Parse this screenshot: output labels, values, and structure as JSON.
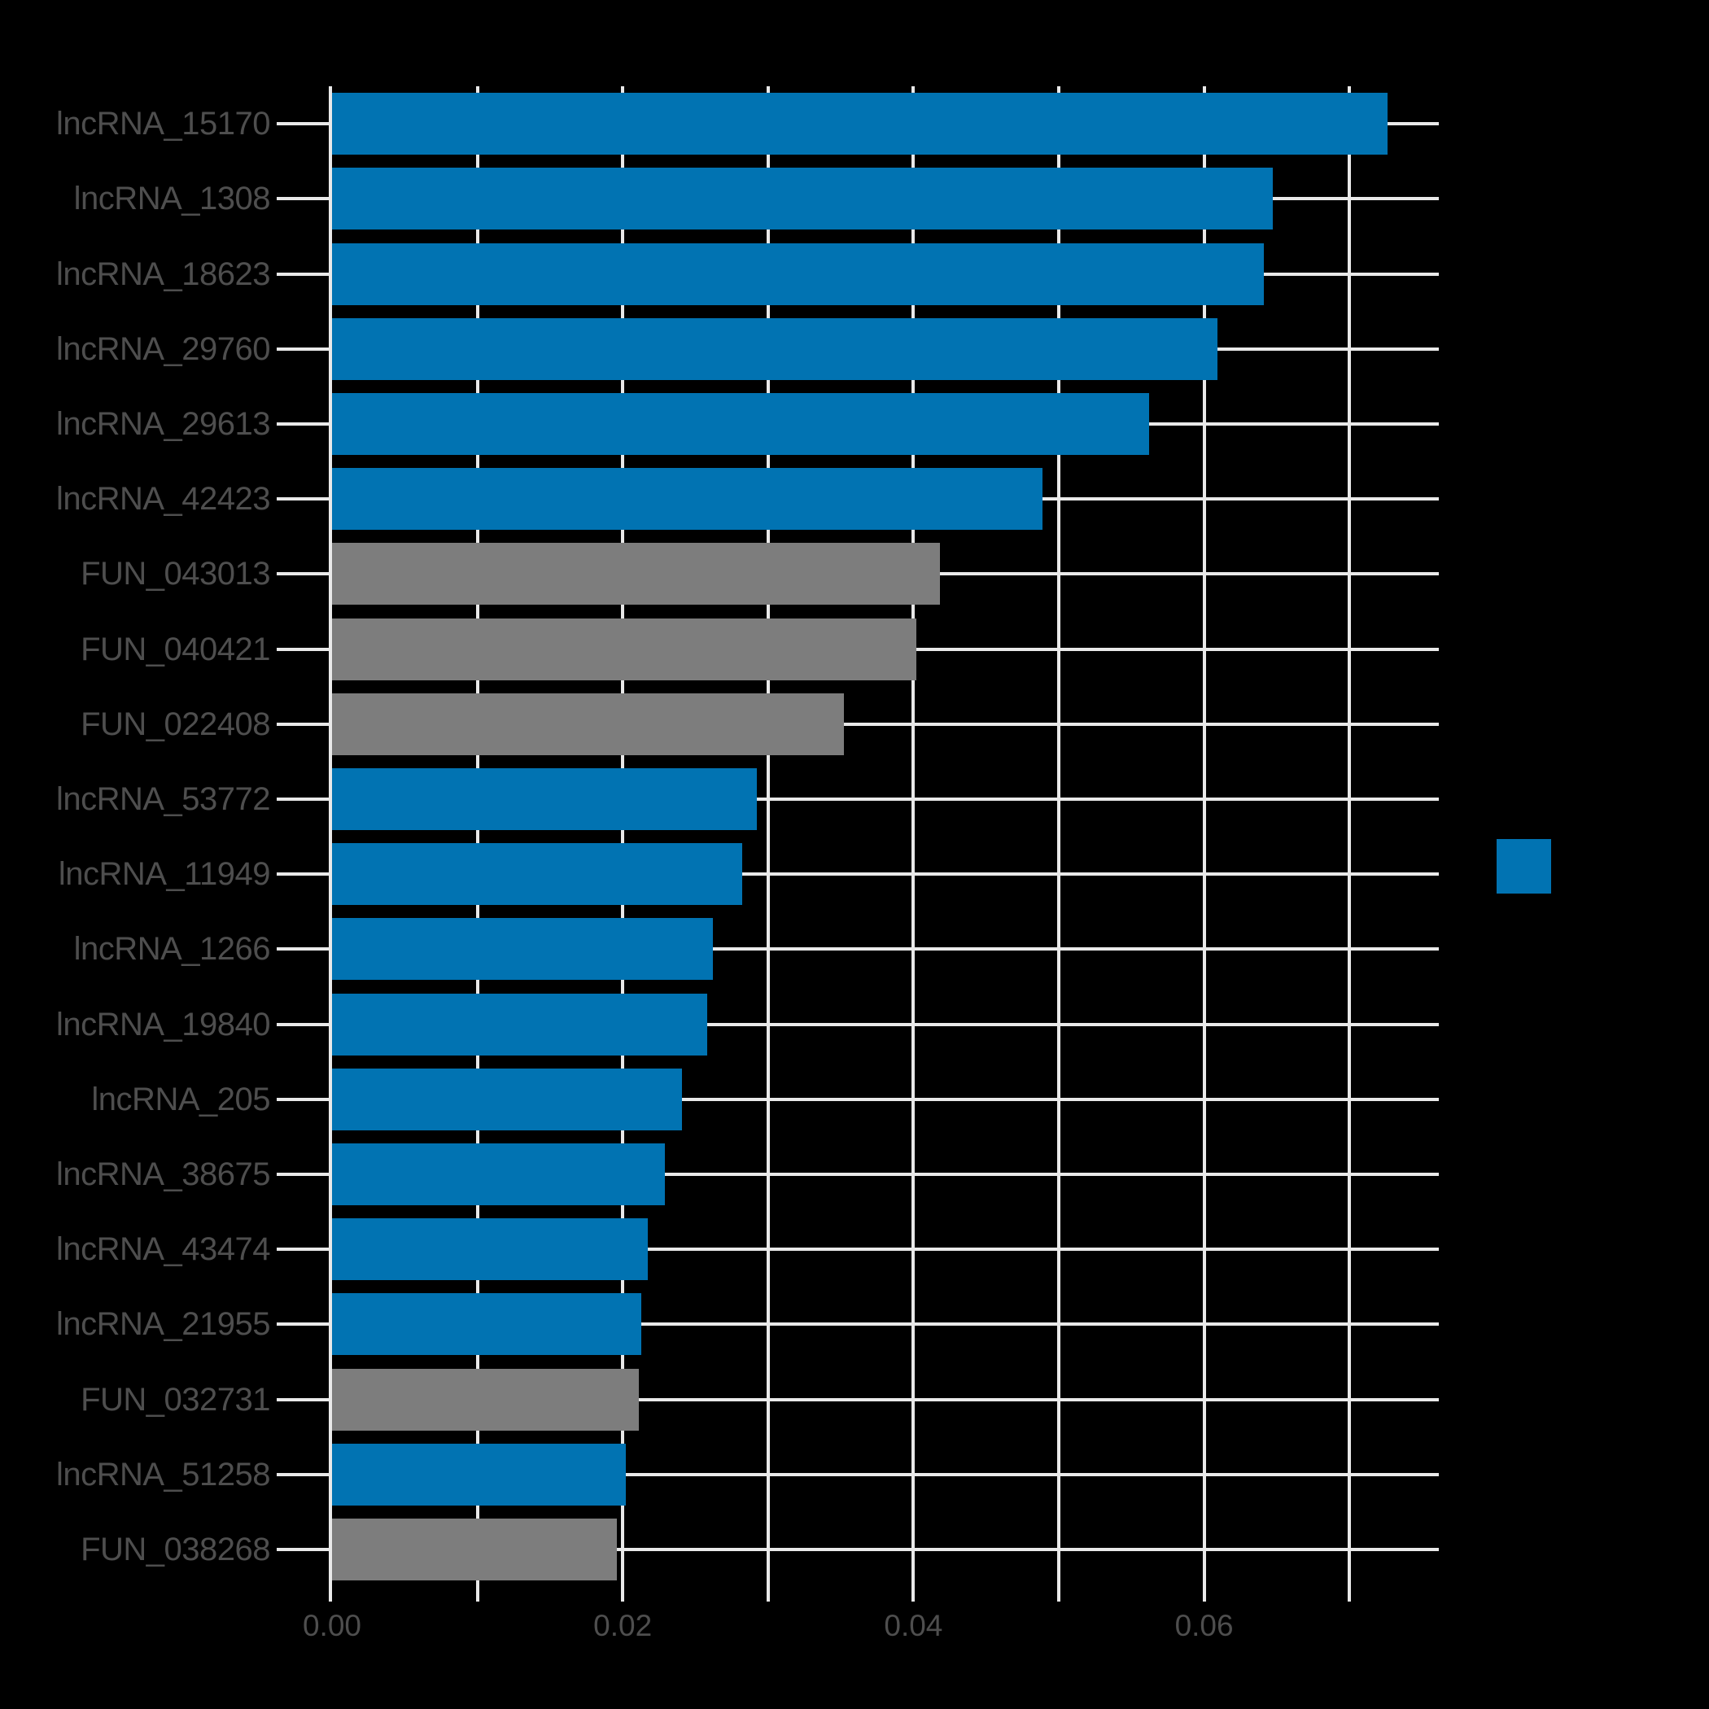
{
  "chart_data": {
    "type": "bar",
    "orientation": "horizontal",
    "title": "",
    "xlabel": "",
    "ylabel": "",
    "categories": [
      "lncRNA_15170",
      "lncRNA_1308",
      "lncRNA_18623",
      "lncRNA_29760",
      "lncRNA_29613",
      "lncRNA_42423",
      "FUN_043013",
      "FUN_040421",
      "FUN_022408",
      "lncRNA_53772",
      "lncRNA_11949",
      "lncRNA_1266",
      "lncRNA_19840",
      "lncRNA_205",
      "lncRNA_38675",
      "lncRNA_43474",
      "lncRNA_21955",
      "FUN_032731",
      "lncRNA_51258",
      "FUN_038268"
    ],
    "values": [
      0.0726,
      0.0647,
      0.0641,
      0.0609,
      0.0562,
      0.0489,
      0.0418,
      0.0402,
      0.0352,
      0.0292,
      0.0282,
      0.0262,
      0.0258,
      0.0241,
      0.0229,
      0.0217,
      0.0213,
      0.0211,
      0.0202,
      0.0196
    ],
    "groups": [
      "lncRNA",
      "lncRNA",
      "lncRNA",
      "lncRNA",
      "lncRNA",
      "lncRNA",
      "FUN",
      "FUN",
      "FUN",
      "lncRNA",
      "lncRNA",
      "lncRNA",
      "lncRNA",
      "lncRNA",
      "lncRNA",
      "lncRNA",
      "lncRNA",
      "FUN",
      "lncRNA",
      "FUN"
    ],
    "group_colors": {
      "lncRNA": "#0173b2",
      "FUN": "#7d7d7d"
    },
    "x_tick_values": [
      0,
      0.01,
      0.02,
      0.03,
      0.04,
      0.05,
      0.06,
      0.07
    ],
    "x_tick_labels": [
      "0.00",
      "",
      "0.02",
      "",
      "0.04",
      "",
      "0.06",
      ""
    ],
    "xlim": [
      0,
      0.0762
    ],
    "grid": true,
    "legend_position": "right",
    "background_color": "#000000",
    "grid_color": "#e9e9e9",
    "text_color": "#4e4e4e",
    "legend": {
      "swatch_color": "#0173b2",
      "label": ""
    }
  }
}
